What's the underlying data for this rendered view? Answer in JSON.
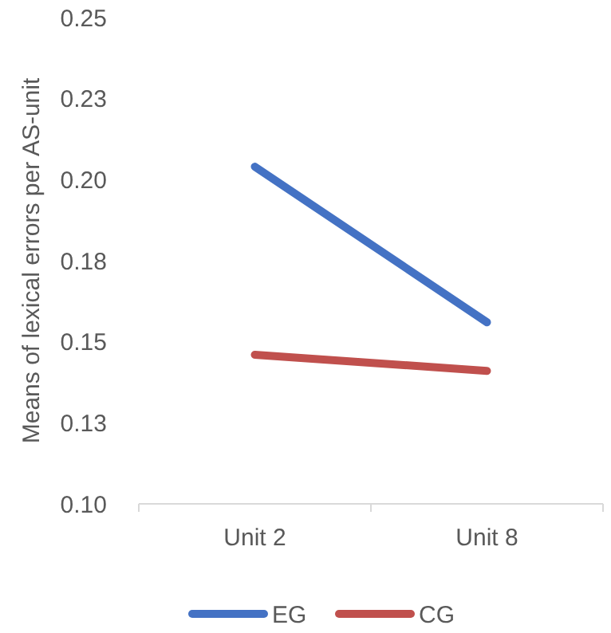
{
  "chart_data": {
    "type": "line",
    "ylabel": "Means of lexical errors per AS-unit",
    "categories": [
      "Unit 2",
      "Unit 8"
    ],
    "series": [
      {
        "name": "EG",
        "color": "#4472c4",
        "values": [
          0.204,
          0.156
        ]
      },
      {
        "name": "CG",
        "color": "#c0504d",
        "values": [
          0.146,
          0.141
        ]
      }
    ],
    "ylim": [
      0.1,
      0.25
    ],
    "yticks": [
      {
        "value": 0.1,
        "label": "0.10"
      },
      {
        "value": 0.125,
        "label": "0.13"
      },
      0.15,
      {
        "value": 0.175,
        "label": "0.18"
      },
      {
        "value": 0.2,
        "label": "0.20"
      },
      {
        "value": 0.225,
        "label": "0.23"
      },
      0.25
    ],
    "grid": false,
    "legend": "bottom",
    "marker": "none",
    "line_style": "solid"
  }
}
